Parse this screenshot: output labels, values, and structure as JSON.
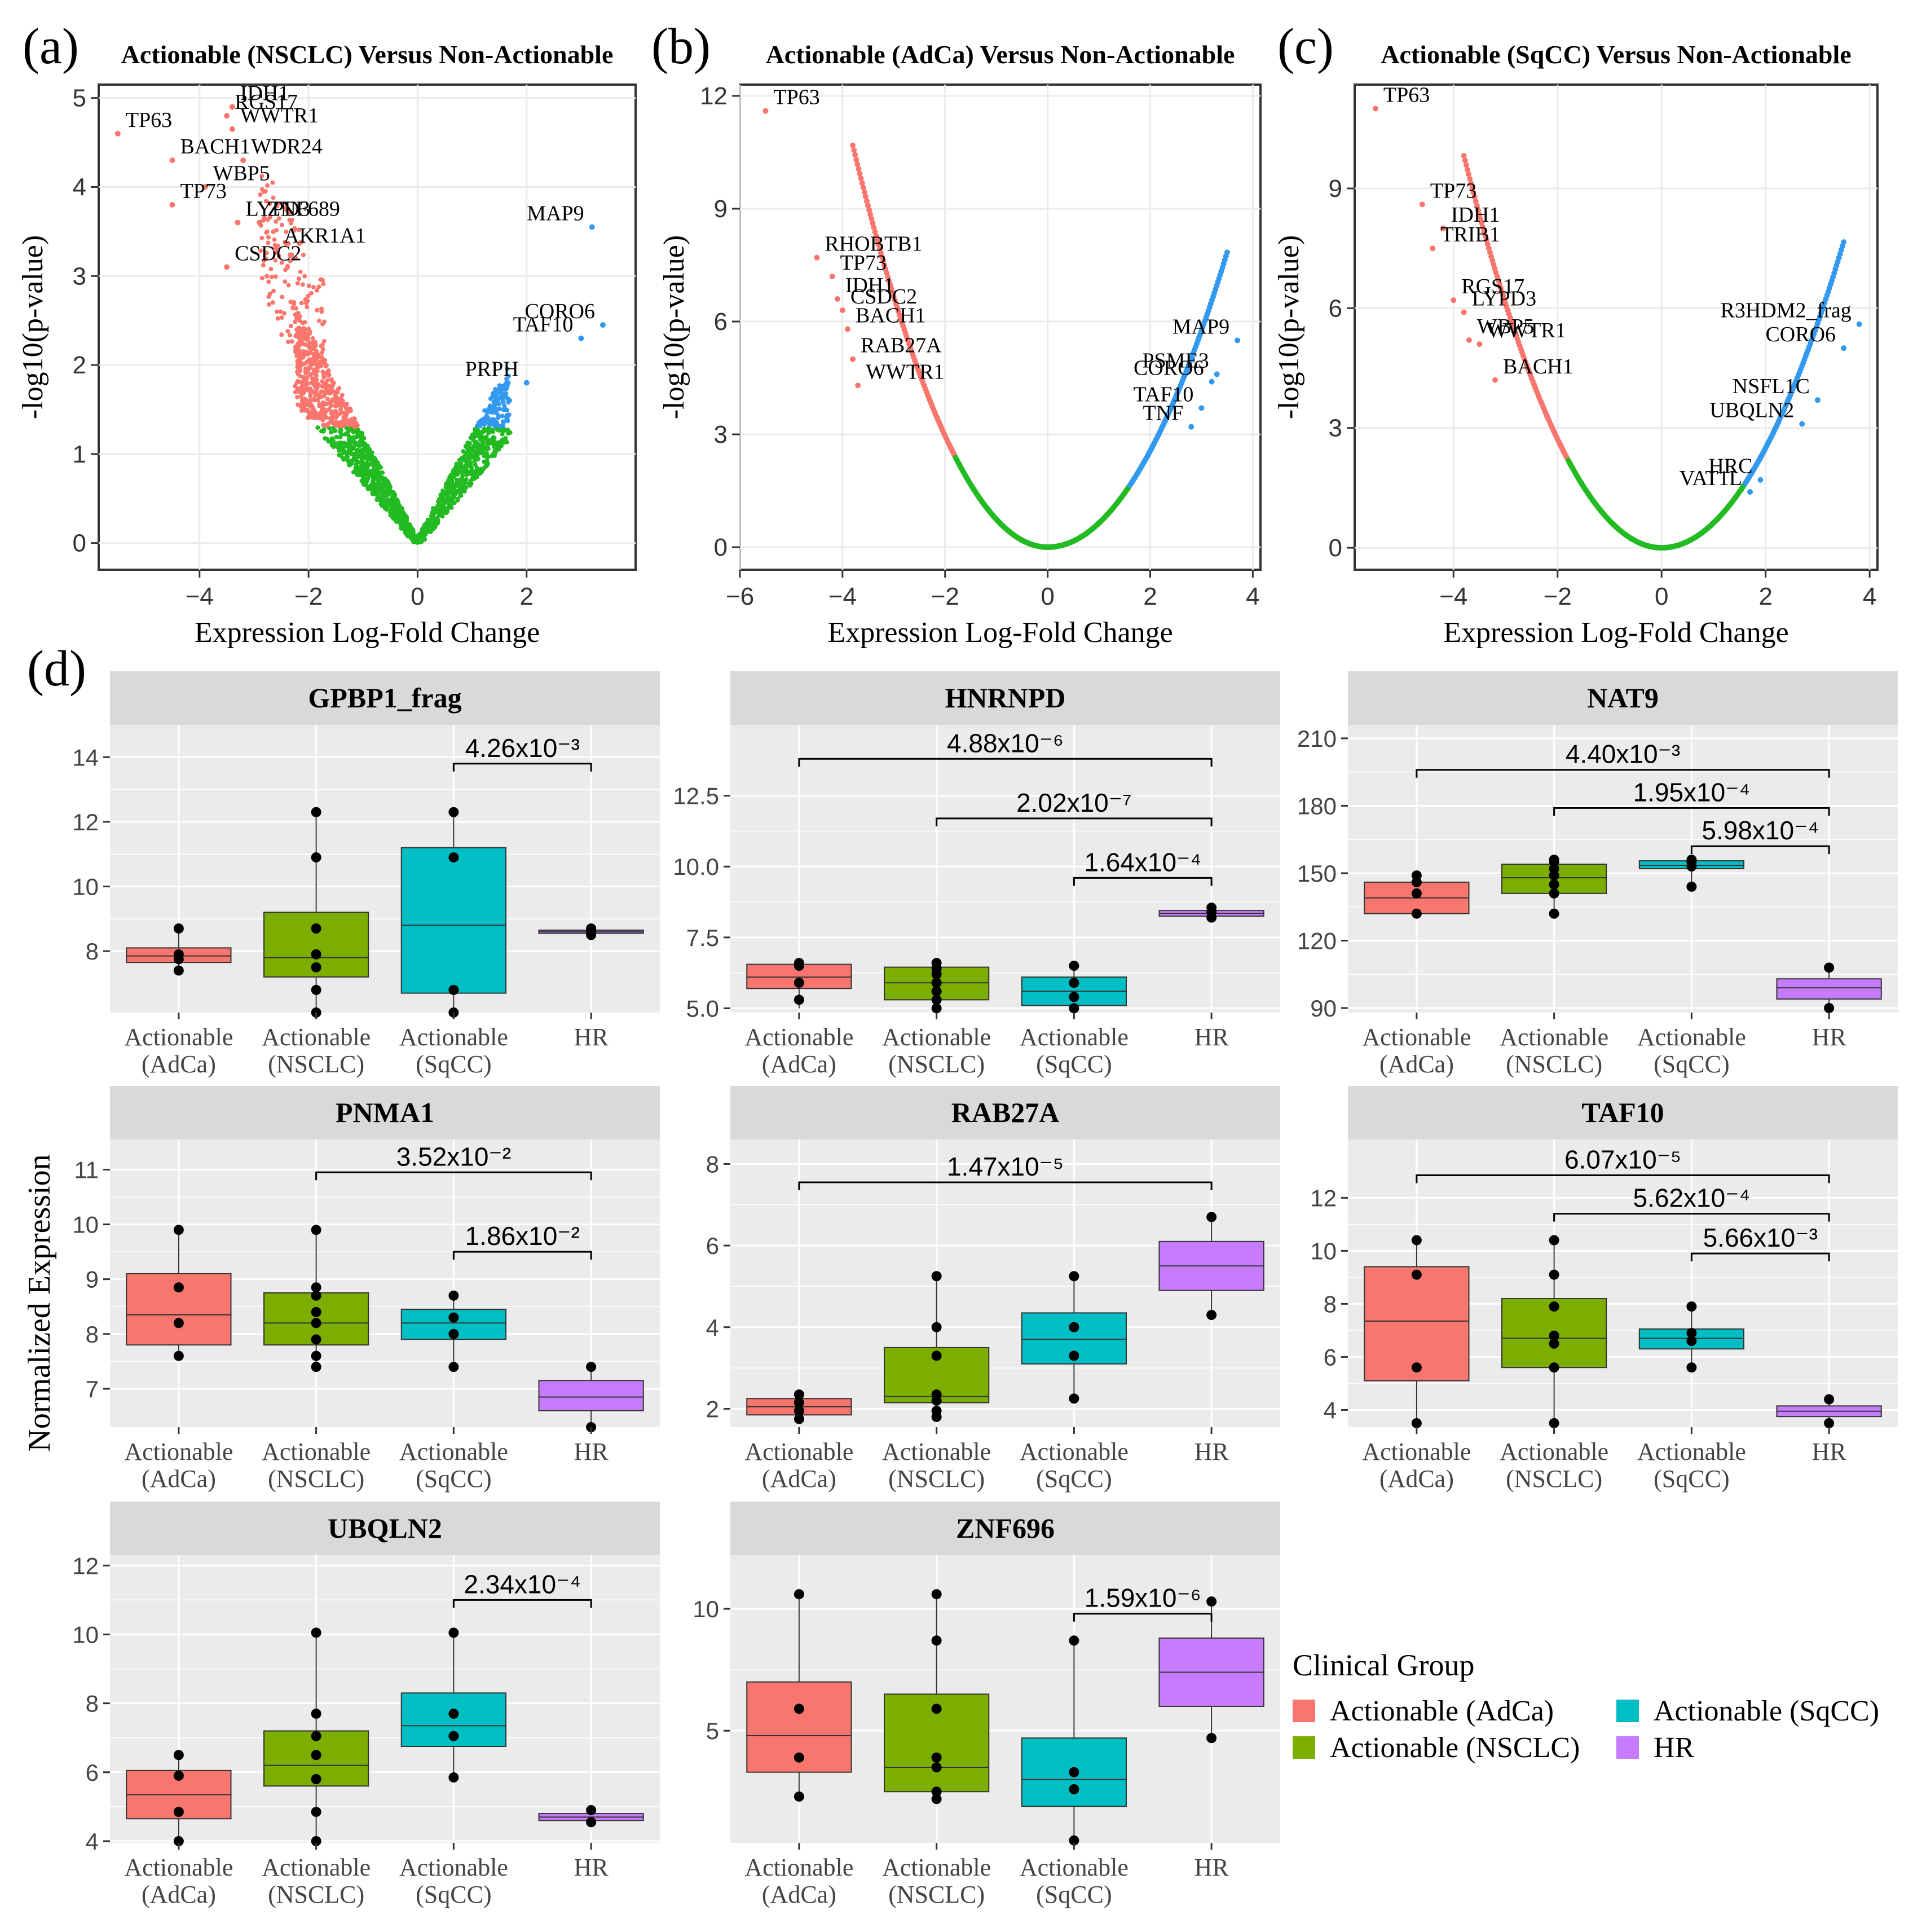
{
  "figure": {
    "panel_labels": {
      "a": "(a)",
      "b": "(b)",
      "c": "(c)",
      "d": "(d)"
    },
    "boxplot_ylabel": "Normalized Expression",
    "legend": {
      "title": "Clinical Group",
      "items": [
        {
          "label": "Actionable (AdCa)",
          "color": "#F8766D"
        },
        {
          "label": "Actionable (NSCLC)",
          "color": "#7CAE00"
        },
        {
          "label": "Actionable (SqCC)",
          "color": "#00BFC4"
        },
        {
          "label": "HR",
          "color": "#C77CFF"
        }
      ]
    },
    "colors": {
      "down": "#F8766D",
      "up": "#3399EE",
      "ns": "#22BB22",
      "panel_bg": "#EBEBEB",
      "strip_bg": "#D9D9D9",
      "grid": "#FFFFFF"
    }
  },
  "chart_data": [
    {
      "type": "scatter",
      "id": "volcano-a",
      "title": "Actionable (NSCLC) Versus Non-Actionable",
      "xlabel": "Expression Log-Fold Change",
      "ylabel": "-log10(p-value)",
      "xlim": [
        -5.85,
        4.0
      ],
      "ylim": [
        -0.3,
        5.15
      ],
      "xticks": [
        -4,
        -2,
        0,
        2
      ],
      "yticks": [
        0,
        1,
        2,
        3,
        4,
        5
      ],
      "cloud": "noisy",
      "labeled_genes": [
        {
          "label": "IDH1",
          "x": -3.4,
          "y": 4.9,
          "side": "down"
        },
        {
          "label": "RGS17",
          "x": -3.5,
          "y": 4.8,
          "side": "down"
        },
        {
          "label": "TP63",
          "x": -5.5,
          "y": 4.6,
          "side": "down"
        },
        {
          "label": "WWTR1",
          "x": -3.4,
          "y": 4.65,
          "side": "down"
        },
        {
          "label": "BACH1",
          "x": -4.5,
          "y": 4.3,
          "side": "down"
        },
        {
          "label": "WDR24",
          "x": -3.2,
          "y": 4.3,
          "side": "down"
        },
        {
          "label": "WBP5",
          "x": -3.9,
          "y": 4.0,
          "side": "down"
        },
        {
          "label": "TP73",
          "x": -4.5,
          "y": 3.8,
          "side": "down"
        },
        {
          "label": "LYPD3",
          "x": -3.3,
          "y": 3.6,
          "side": "down"
        },
        {
          "label": "ZNF689",
          "x": -2.9,
          "y": 3.6,
          "side": "down"
        },
        {
          "label": "CSDC2",
          "x": -3.5,
          "y": 3.1,
          "side": "down"
        },
        {
          "label": "AKR1A1",
          "x": -2.6,
          "y": 3.3,
          "side": "down"
        },
        {
          "label": "MAP9",
          "x": 3.2,
          "y": 3.55,
          "side": "up"
        },
        {
          "label": "CORO6",
          "x": 3.4,
          "y": 2.45,
          "side": "up"
        },
        {
          "label": "TAF10",
          "x": 3.0,
          "y": 2.3,
          "side": "up"
        },
        {
          "label": "PRPH",
          "x": 2.0,
          "y": 1.8,
          "side": "up"
        }
      ]
    },
    {
      "type": "scatter",
      "id": "volcano-b",
      "title": "Actionable (AdCa) Versus Non-Actionable",
      "xlabel": "Expression Log-Fold Change",
      "ylabel": "-log10(p-value)",
      "xlim": [
        -6.0,
        4.15
      ],
      "ylim": [
        -0.6,
        12.3
      ],
      "xticks": [
        -6,
        -4,
        -2,
        0,
        2,
        4
      ],
      "yticks": [
        0,
        3,
        6,
        9,
        12
      ],
      "cloud": "curve",
      "labeled_genes": [
        {
          "label": "TP63",
          "x": -5.5,
          "y": 11.6,
          "side": "down"
        },
        {
          "label": "RHOBTB1",
          "x": -4.5,
          "y": 7.7,
          "side": "down"
        },
        {
          "label": "TP73",
          "x": -4.2,
          "y": 7.2,
          "side": "down"
        },
        {
          "label": "IDH1",
          "x": -4.1,
          "y": 6.6,
          "side": "down"
        },
        {
          "label": "CSDC2",
          "x": -4.0,
          "y": 6.3,
          "side": "down"
        },
        {
          "label": "BACH1",
          "x": -3.9,
          "y": 5.8,
          "side": "down"
        },
        {
          "label": "RAB27A",
          "x": -3.8,
          "y": 5.0,
          "side": "down"
        },
        {
          "label": "WWTR1",
          "x": -3.7,
          "y": 4.3,
          "side": "down"
        },
        {
          "label": "MAP9",
          "x": 3.7,
          "y": 5.5,
          "side": "up"
        },
        {
          "label": "PSME3",
          "x": 3.3,
          "y": 4.6,
          "side": "up"
        },
        {
          "label": "CORO6",
          "x": 3.2,
          "y": 4.4,
          "side": "up"
        },
        {
          "label": "TAF10",
          "x": 3.0,
          "y": 3.7,
          "side": "up"
        },
        {
          "label": "TNF",
          "x": 2.8,
          "y": 3.2,
          "side": "up"
        }
      ]
    },
    {
      "type": "scatter",
      "id": "volcano-c",
      "title": "Actionable (SqCC) Versus Non-Actionable",
      "xlabel": "Expression Log-Fold Change",
      "ylabel": "-log10(p-value)",
      "xlim": [
        -5.9,
        4.15
      ],
      "ylim": [
        -0.55,
        11.6
      ],
      "xticks": [
        -4,
        -2,
        0,
        2,
        4
      ],
      "yticks": [
        0,
        3,
        6,
        9
      ],
      "cloud": "curve",
      "labeled_genes": [
        {
          "label": "TP63",
          "x": -5.5,
          "y": 11.0,
          "side": "down"
        },
        {
          "label": "TP73",
          "x": -4.6,
          "y": 8.6,
          "side": "down"
        },
        {
          "label": "IDH1",
          "x": -4.2,
          "y": 8.0,
          "side": "down"
        },
        {
          "label": "TRIB1",
          "x": -4.4,
          "y": 7.5,
          "side": "down"
        },
        {
          "label": "RGS17",
          "x": -4.0,
          "y": 6.2,
          "side": "down"
        },
        {
          "label": "LYPD3",
          "x": -3.8,
          "y": 5.9,
          "side": "down"
        },
        {
          "label": "WBP5",
          "x": -3.7,
          "y": 5.2,
          "side": "down"
        },
        {
          "label": "WWTR1",
          "x": -3.5,
          "y": 5.1,
          "side": "down"
        },
        {
          "label": "BACH1",
          "x": -3.2,
          "y": 4.2,
          "side": "down"
        },
        {
          "label": "R3HDM2_frag",
          "x": 3.8,
          "y": 5.6,
          "side": "up"
        },
        {
          "label": "CORO6",
          "x": 3.5,
          "y": 5.0,
          "side": "up"
        },
        {
          "label": "NSFL1C",
          "x": 3.0,
          "y": 3.7,
          "side": "up"
        },
        {
          "label": "UBQLN2",
          "x": 2.7,
          "y": 3.1,
          "side": "up"
        },
        {
          "label": "HRC",
          "x": 1.9,
          "y": 1.7,
          "side": "up"
        },
        {
          "label": "VAT1L",
          "x": 1.7,
          "y": 1.4,
          "side": "up"
        }
      ]
    },
    {
      "type": "box",
      "title": "GPBP1_frag",
      "categories": [
        "Actionable\n(AdCa)",
        "Actionable\n(NSCLC)",
        "Actionable\n(SqCC)",
        "HR"
      ],
      "ylim": [
        6.1,
        15.0
      ],
      "yticks": [
        8,
        10,
        12,
        14
      ],
      "boxes": [
        {
          "q1": 7.65,
          "median": 7.85,
          "q3": 8.1,
          "min": 7.4,
          "max": 8.7,
          "points": [
            7.4,
            7.75,
            7.9,
            8.7
          ]
        },
        {
          "q1": 7.2,
          "median": 7.8,
          "q3": 9.2,
          "min": 6.0,
          "max": 12.3,
          "points": [
            6.1,
            6.8,
            7.5,
            7.9,
            8.7,
            10.9,
            12.3
          ]
        },
        {
          "q1": 6.7,
          "median": 8.8,
          "q3": 11.2,
          "min": 6.0,
          "max": 12.3,
          "points": [
            6.1,
            6.8,
            10.9,
            12.3
          ]
        },
        {
          "q1": 8.55,
          "median": 8.6,
          "q3": 8.65,
          "min": 8.5,
          "max": 8.7,
          "points": [
            8.5,
            8.6,
            8.7
          ]
        }
      ],
      "brackets": [
        {
          "from": 2,
          "to": 3,
          "y": 13.8,
          "label": "4.26x10⁻³"
        }
      ]
    },
    {
      "type": "box",
      "title": "HNRNPD",
      "categories": [
        "Actionable\n(AdCa)",
        "Actionable\n(NSCLC)",
        "Actionable\n(SqCC)",
        "HR"
      ],
      "ylim": [
        4.85,
        15.0
      ],
      "yticks": [
        5.0,
        7.5,
        10.0,
        12.5
      ],
      "boxes": [
        {
          "q1": 5.7,
          "median": 6.1,
          "q3": 6.55,
          "min": 5.0,
          "max": 6.6,
          "points": [
            5.3,
            5.9,
            6.5,
            6.6
          ]
        },
        {
          "q1": 5.3,
          "median": 5.9,
          "q3": 6.45,
          "min": 4.9,
          "max": 6.6,
          "points": [
            5.0,
            5.3,
            5.6,
            5.9,
            6.2,
            6.4,
            6.6
          ]
        },
        {
          "q1": 5.1,
          "median": 5.6,
          "q3": 6.1,
          "min": 4.9,
          "max": 6.5,
          "points": [
            5.0,
            5.4,
            5.9,
            6.5
          ]
        },
        {
          "q1": 8.25,
          "median": 8.35,
          "q3": 8.45,
          "min": 8.15,
          "max": 8.55,
          "points": [
            8.2,
            8.4,
            8.55
          ]
        }
      ],
      "brackets": [
        {
          "from": 0,
          "to": 3,
          "y": 13.8,
          "label": "4.88x10⁻⁶"
        },
        {
          "from": 1,
          "to": 3,
          "y": 11.7,
          "label": "2.02x10⁻⁷"
        },
        {
          "from": 2,
          "to": 3,
          "y": 9.6,
          "label": "1.64x10⁻⁴"
        }
      ]
    },
    {
      "type": "box",
      "title": "NAT9",
      "categories": [
        "Actionable\n(AdCa)",
        "Actionable\n(NSCLC)",
        "Actionable\n(SqCC)",
        "HR"
      ],
      "ylim": [
        88,
        216
      ],
      "yticks": [
        90,
        120,
        150,
        180,
        210
      ],
      "boxes": [
        {
          "q1": 132,
          "median": 139,
          "q3": 146,
          "min": 131,
          "max": 149,
          "points": [
            132,
            141,
            146,
            149
          ]
        },
        {
          "q1": 141,
          "median": 148,
          "q3": 154,
          "min": 131,
          "max": 156,
          "points": [
            132,
            141,
            145,
            149,
            152,
            155,
            156
          ]
        },
        {
          "q1": 152,
          "median": 153.5,
          "q3": 155.5,
          "min": 144,
          "max": 156,
          "points": [
            144,
            153,
            155,
            156
          ]
        },
        {
          "q1": 94,
          "median": 99,
          "q3": 103,
          "min": 89,
          "max": 108,
          "points": [
            90,
            108
          ]
        }
      ],
      "brackets": [
        {
          "from": 0,
          "to": 3,
          "y": 196,
          "label": "4.40x10⁻³"
        },
        {
          "from": 1,
          "to": 3,
          "y": 179,
          "label": "1.95x10⁻⁴"
        },
        {
          "from": 2,
          "to": 3,
          "y": 162,
          "label": "5.98x10⁻⁴"
        }
      ]
    },
    {
      "type": "box",
      "title": "PNMA1",
      "categories": [
        "Actionable\n(AdCa)",
        "Actionable\n(NSCLC)",
        "Actionable\n(SqCC)",
        "HR"
      ],
      "ylim": [
        6.3,
        11.55
      ],
      "yticks": [
        7,
        8,
        9,
        10,
        11
      ],
      "boxes": [
        {
          "q1": 7.8,
          "median": 8.35,
          "q3": 9.1,
          "min": 7.6,
          "max": 9.9,
          "points": [
            7.6,
            8.2,
            8.85,
            9.9
          ]
        },
        {
          "q1": 7.8,
          "median": 8.2,
          "q3": 8.75,
          "min": 7.4,
          "max": 9.9,
          "points": [
            7.4,
            7.6,
            7.9,
            8.2,
            8.4,
            8.7,
            8.85,
            9.9
          ]
        },
        {
          "q1": 7.9,
          "median": 8.2,
          "q3": 8.45,
          "min": 7.4,
          "max": 8.7,
          "points": [
            7.4,
            8.0,
            8.3,
            8.7
          ]
        },
        {
          "q1": 6.6,
          "median": 6.85,
          "q3": 7.15,
          "min": 6.3,
          "max": 7.4,
          "points": [
            6.3,
            7.4
          ]
        }
      ],
      "brackets": [
        {
          "from": 1,
          "to": 3,
          "y": 10.95,
          "label": "3.52x10⁻²"
        },
        {
          "from": 2,
          "to": 3,
          "y": 9.5,
          "label": "1.86x10⁻²"
        }
      ]
    },
    {
      "type": "box",
      "title": "RAB27A",
      "categories": [
        "Actionable\n(AdCa)",
        "Actionable\n(NSCLC)",
        "Actionable\n(SqCC)",
        "HR"
      ],
      "ylim": [
        1.55,
        8.6
      ],
      "yticks": [
        2,
        4,
        6,
        8
      ],
      "boxes": [
        {
          "q1": 1.85,
          "median": 2.05,
          "q3": 2.25,
          "min": 1.7,
          "max": 2.35,
          "points": [
            1.75,
            1.95,
            2.15,
            2.35
          ]
        },
        {
          "q1": 2.15,
          "median": 2.3,
          "q3": 3.5,
          "min": 1.75,
          "max": 5.25,
          "points": [
            1.8,
            1.95,
            2.2,
            2.35,
            3.3,
            4.0,
            5.25
          ]
        },
        {
          "q1": 3.1,
          "median": 3.7,
          "q3": 4.35,
          "min": 2.25,
          "max": 5.25,
          "points": [
            2.25,
            3.3,
            4.0,
            5.25
          ]
        },
        {
          "q1": 4.9,
          "median": 5.5,
          "q3": 6.1,
          "min": 4.3,
          "max": 6.7,
          "points": [
            4.3,
            6.7
          ]
        }
      ],
      "brackets": [
        {
          "from": 0,
          "to": 3,
          "y": 7.55,
          "label": "1.47x10⁻⁵"
        }
      ]
    },
    {
      "type": "box",
      "title": "TAF10",
      "categories": [
        "Actionable\n(AdCa)",
        "Actionable\n(NSCLC)",
        "Actionable\n(SqCC)",
        "HR"
      ],
      "ylim": [
        3.35,
        14.2
      ],
      "yticks": [
        4,
        6,
        8,
        10,
        12
      ],
      "boxes": [
        {
          "q1": 5.1,
          "median": 7.35,
          "q3": 9.4,
          "min": 3.4,
          "max": 10.4,
          "points": [
            3.5,
            5.6,
            9.1,
            10.4
          ]
        },
        {
          "q1": 5.6,
          "median": 6.7,
          "q3": 8.2,
          "min": 3.4,
          "max": 10.4,
          "points": [
            3.5,
            5.6,
            6.5,
            6.8,
            7.9,
            9.1,
            10.4
          ]
        },
        {
          "q1": 6.3,
          "median": 6.7,
          "q3": 7.05,
          "min": 5.6,
          "max": 7.9,
          "points": [
            5.6,
            6.6,
            6.9,
            7.9
          ]
        },
        {
          "q1": 3.75,
          "median": 3.95,
          "q3": 4.15,
          "min": 3.5,
          "max": 4.4,
          "points": [
            3.5,
            4.4
          ]
        }
      ],
      "brackets": [
        {
          "from": 0,
          "to": 3,
          "y": 12.85,
          "label": "6.07x10⁻⁵"
        },
        {
          "from": 1,
          "to": 3,
          "y": 11.4,
          "label": "5.62x10⁻⁴"
        },
        {
          "from": 2,
          "to": 3,
          "y": 9.9,
          "label": "5.66x10⁻³"
        }
      ]
    },
    {
      "type": "box",
      "title": "UBQLN2",
      "categories": [
        "Actionable\n(AdCa)",
        "Actionable\n(NSCLC)",
        "Actionable\n(SqCC)",
        "HR"
      ],
      "ylim": [
        3.95,
        12.3
      ],
      "yticks": [
        4,
        6,
        8,
        10,
        12
      ],
      "boxes": [
        {
          "q1": 4.65,
          "median": 5.35,
          "q3": 6.05,
          "min": 4.0,
          "max": 6.5,
          "points": [
            4.0,
            4.85,
            5.9,
            6.5
          ]
        },
        {
          "q1": 5.6,
          "median": 6.2,
          "q3": 7.2,
          "min": 4.0,
          "max": 10.05,
          "points": [
            4.0,
            4.85,
            5.8,
            6.5,
            7.05,
            7.7,
            10.05
          ]
        },
        {
          "q1": 6.75,
          "median": 7.35,
          "q3": 8.3,
          "min": 5.85,
          "max": 10.05,
          "points": [
            5.85,
            7.05,
            7.7,
            10.05
          ]
        },
        {
          "q1": 4.6,
          "median": 4.7,
          "q3": 4.8,
          "min": 4.55,
          "max": 4.9,
          "points": [
            4.55,
            4.9
          ]
        }
      ],
      "brackets": [
        {
          "from": 2,
          "to": 3,
          "y": 11.0,
          "label": "2.34x10⁻⁴"
        }
      ]
    },
    {
      "type": "box",
      "title": "ZNF696",
      "categories": [
        "Actionable\n(AdCa)",
        "Actionable\n(NSCLC)",
        "Actionable\n(SqCC)",
        "HR"
      ],
      "ylim": [
        0.4,
        12.2
      ],
      "yticks": [
        5,
        10
      ],
      "boxes": [
        {
          "q1": 3.3,
          "median": 4.8,
          "q3": 7.0,
          "min": 2.3,
          "max": 10.6,
          "points": [
            2.3,
            3.9,
            5.9,
            10.6
          ]
        },
        {
          "q1": 2.5,
          "median": 3.5,
          "q3": 6.5,
          "min": 2.2,
          "max": 10.6,
          "points": [
            2.2,
            2.5,
            3.5,
            3.9,
            5.9,
            8.7,
            10.6
          ]
        },
        {
          "q1": 1.9,
          "median": 3.0,
          "q3": 4.7,
          "min": 0.5,
          "max": 8.7,
          "points": [
            0.5,
            2.6,
            3.3,
            8.7
          ]
        },
        {
          "q1": 6.0,
          "median": 7.4,
          "q3": 8.8,
          "min": 4.7,
          "max": 10.3,
          "points": [
            4.7,
            10.3
          ]
        }
      ],
      "brackets": [
        {
          "from": 2,
          "to": 3,
          "y": 9.8,
          "label": "1.59x10⁻⁶"
        }
      ]
    }
  ]
}
